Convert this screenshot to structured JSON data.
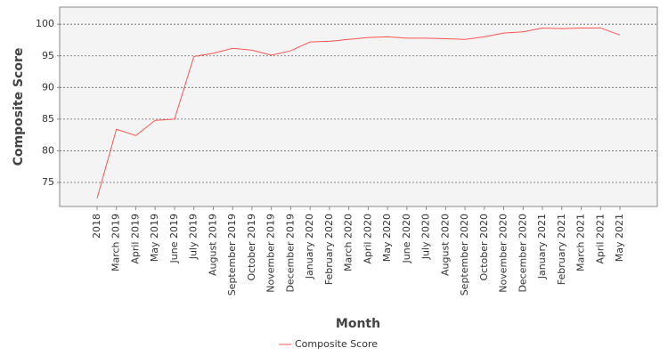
{
  "chart_data": {
    "type": "line",
    "x_label": "Month",
    "y_label": "Composite Score",
    "categories": [
      "2018",
      "March 2019",
      "April 2019",
      "May 2019",
      "June 2019",
      "July 2019",
      "August 2019",
      "September 2019",
      "October 2019",
      "November 2019",
      "December 2019",
      "January 2020",
      "February 2020",
      "March 2020",
      "April 2020",
      "May 2020",
      "June 2020",
      "July 2020",
      "August 2020",
      "September 2020",
      "October 2020",
      "November 2020",
      "December 2020",
      "January 2021",
      "February 2021",
      "March 2021",
      "April 2021",
      "May 2021"
    ],
    "series": [
      {
        "name": "Composite Score",
        "color": "#ff5555",
        "values": [
          72.5,
          83.4,
          82.4,
          84.8,
          85.0,
          94.9,
          95.4,
          96.2,
          95.9,
          95.1,
          95.8,
          97.2,
          97.3,
          97.6,
          97.9,
          98.0,
          97.8,
          97.8,
          97.7,
          97.6,
          98.0,
          98.6,
          98.8,
          99.4,
          99.3,
          99.4,
          99.4,
          98.3
        ]
      }
    ],
    "ylim": [
      71.2,
      102.7
    ],
    "yticks": [
      75,
      80,
      85,
      90,
      95,
      100
    ],
    "grid": true,
    "legend": "bottom"
  }
}
